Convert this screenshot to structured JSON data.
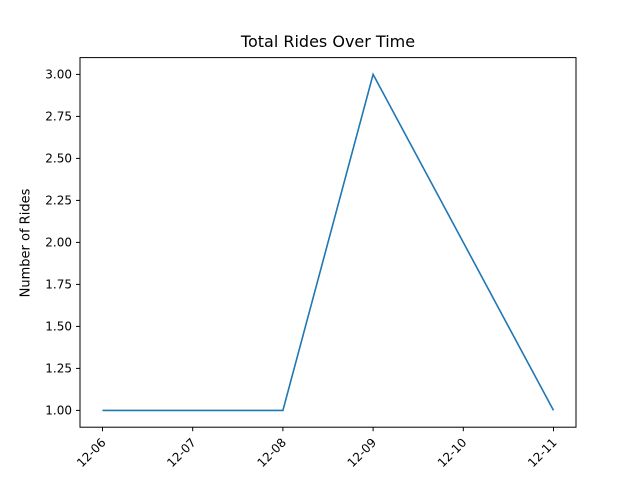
{
  "chart_data": {
    "type": "line",
    "title": "Total Rides Over Time",
    "xlabel": "",
    "ylabel": "Number of Rides",
    "x": [
      "12-06",
      "12-07",
      "12-08",
      "12-09",
      "12-10",
      "12-11"
    ],
    "series": [
      {
        "values": [
          1,
          1,
          1,
          3,
          2,
          1
        ]
      }
    ],
    "yticks": [
      "1.00",
      "1.25",
      "1.50",
      "1.75",
      "2.00",
      "2.25",
      "2.50",
      "2.75",
      "3.00"
    ],
    "ylim": [
      0.9,
      3.1
    ],
    "grid": false,
    "line_color": "#1f77b4"
  }
}
